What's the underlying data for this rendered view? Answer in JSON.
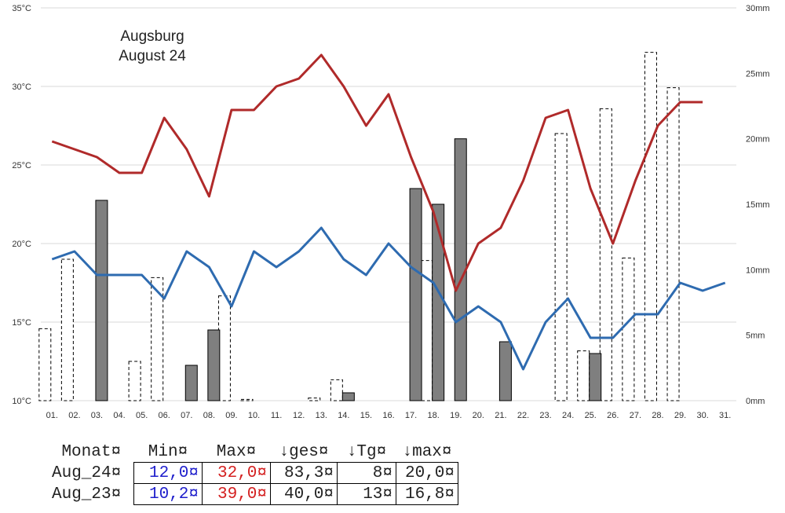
{
  "chart_data": {
    "type": "line+bar",
    "title": "Augsburg",
    "subtitle": "August 24",
    "categories": [
      "01.",
      "02.",
      "03.",
      "04.",
      "05.",
      "06.",
      "07.",
      "08.",
      "09.",
      "10.",
      "11.",
      "12.",
      "13.",
      "14.",
      "15.",
      "16.",
      "17.",
      "18.",
      "19.",
      "20.",
      "21.",
      "22.",
      "23.",
      "24.",
      "25.",
      "26.",
      "27.",
      "28.",
      "29.",
      "30.",
      "31."
    ],
    "y_left": {
      "min": 10,
      "max": 35,
      "ticks": [
        10,
        15,
        20,
        25,
        30,
        35
      ],
      "tick_labels": [
        "10°C",
        "15°C",
        "20°C",
        "25°C",
        "30°C",
        "35°C"
      ]
    },
    "y_right": {
      "min": 0,
      "max": 30,
      "ticks": [
        0,
        5,
        10,
        15,
        20,
        25,
        30
      ],
      "tick_labels": [
        "0mm",
        "5mm",
        "10mm",
        "15mm",
        "20mm",
        "25mm",
        "30mm"
      ]
    },
    "grid": true,
    "series": [
      {
        "kind": "line",
        "axis": "left",
        "color": "#b02a2a",
        "values": [
          26.5,
          26.0,
          25.5,
          24.5,
          24.5,
          28.0,
          26.0,
          23.0,
          28.5,
          28.5,
          30.0,
          30.5,
          32.0,
          30.0,
          27.5,
          29.5,
          25.5,
          22.0,
          17.0,
          20.0,
          21.0,
          24.0,
          28.0,
          28.5,
          23.5,
          20.0,
          24.0,
          27.5,
          29.0,
          29.0,
          null
        ]
      },
      {
        "kind": "line",
        "axis": "left",
        "color": "#2e6bb0",
        "values": [
          19.0,
          19.5,
          18.0,
          18.0,
          18.0,
          16.5,
          19.5,
          18.5,
          16.0,
          19.5,
          18.5,
          19.5,
          21.0,
          19.0,
          18.0,
          20.0,
          18.5,
          17.5,
          15.0,
          16.0,
          15.0,
          12.0,
          15.0,
          16.5,
          14.0,
          14.0,
          15.5,
          15.5,
          17.5,
          17.0,
          17.5
        ]
      },
      {
        "kind": "bar",
        "axis": "right",
        "style": "solid",
        "color": "#7f7f7f",
        "values": [
          0,
          0,
          15.3,
          0,
          0,
          0,
          2.7,
          5.4,
          0,
          0,
          0,
          0,
          0,
          0.6,
          0,
          0,
          16.2,
          15.0,
          20.0,
          0,
          4.5,
          0,
          0,
          0,
          3.6,
          0,
          0,
          0,
          0,
          0,
          0
        ]
      },
      {
        "kind": "bar",
        "axis": "right",
        "style": "dashed",
        "color": "#ffffff",
        "values": [
          5.5,
          10.8,
          0,
          0,
          3.0,
          9.4,
          0,
          0,
          8.0,
          0.1,
          0,
          0,
          0.2,
          1.6,
          0,
          0,
          0,
          10.7,
          0,
          0,
          0,
          0,
          0,
          20.4,
          3.8,
          22.3,
          10.9,
          26.6,
          23.9,
          0,
          0
        ]
      }
    ]
  },
  "stats_table": {
    "headers": [
      "Monat¤",
      "Min¤",
      "Max¤",
      "↓ges¤",
      "↓Tg¤",
      "↓max¤"
    ],
    "rows": [
      {
        "month": "Aug_24¤",
        "min": "12,0¤",
        "max": "32,0¤",
        "ges": "83,3¤",
        "tg": "8¤",
        "maxp": "20,0¤"
      },
      {
        "month": "Aug_23¤",
        "min": "10,2¤",
        "max": "39,0¤",
        "ges": "40,0¤",
        "tg": "13¤",
        "maxp": "16,8¤"
      }
    ],
    "min_color": "#1f1fcc",
    "max_color": "#d42020"
  }
}
